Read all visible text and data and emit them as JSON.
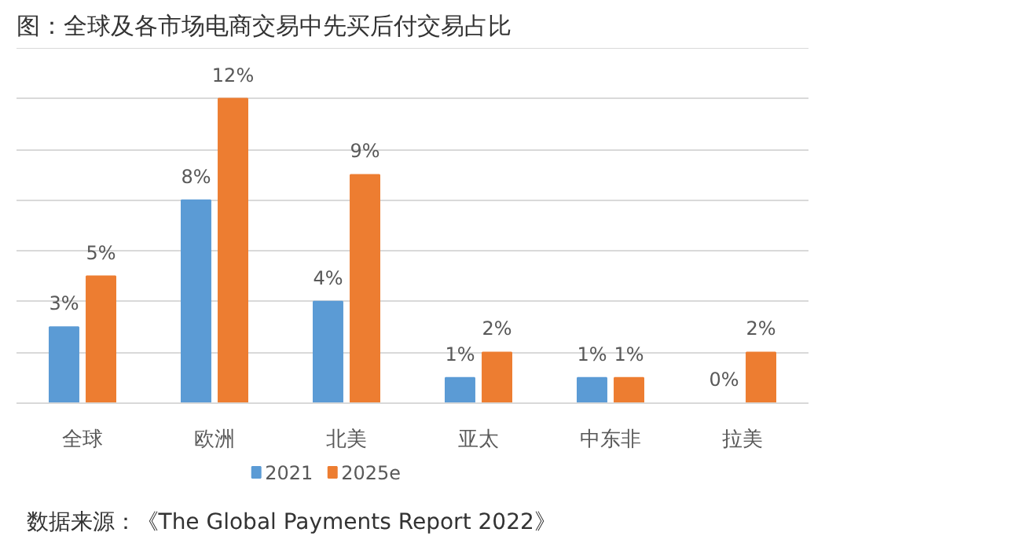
{
  "chart_data": {
    "type": "bar",
    "title": "图：全球及各市场电商交易中先买后付交易占比",
    "categories": [
      "全球",
      "欧洲",
      "北美",
      "亚太",
      "中东非",
      "拉美"
    ],
    "series": [
      {
        "name": "2021",
        "color": "#5b9bd5",
        "values": [
          3,
          8,
          4,
          1,
          1,
          0
        ],
        "value_labels": [
          "3%",
          "8%",
          "4%",
          "1%",
          "1%",
          "0%"
        ]
      },
      {
        "name": "2025e",
        "color": "#ed7d31",
        "values": [
          5,
          12,
          9,
          2,
          1,
          2
        ],
        "value_labels": [
          "5%",
          "12%",
          "9%",
          "2%",
          "1%",
          "2%"
        ]
      }
    ],
    "ylim": [
      0,
      14
    ],
    "yticks": [
      {
        "value": 0,
        "label": null
      },
      {
        "value": 2,
        "label": null
      },
      {
        "value": 4,
        "label": null
      },
      {
        "value": 6,
        "label": null
      },
      {
        "value": 8,
        "label": null
      },
      {
        "value": 10,
        "label": null
      },
      {
        "value": 12,
        "label": null
      },
      {
        "value": 14,
        "label": null
      }
    ],
    "grid": "y",
    "tick_labels": "x",
    "legend": "bottom",
    "annotations": [
      "数据来源：《The Global Payments Report 2022》"
    ]
  }
}
